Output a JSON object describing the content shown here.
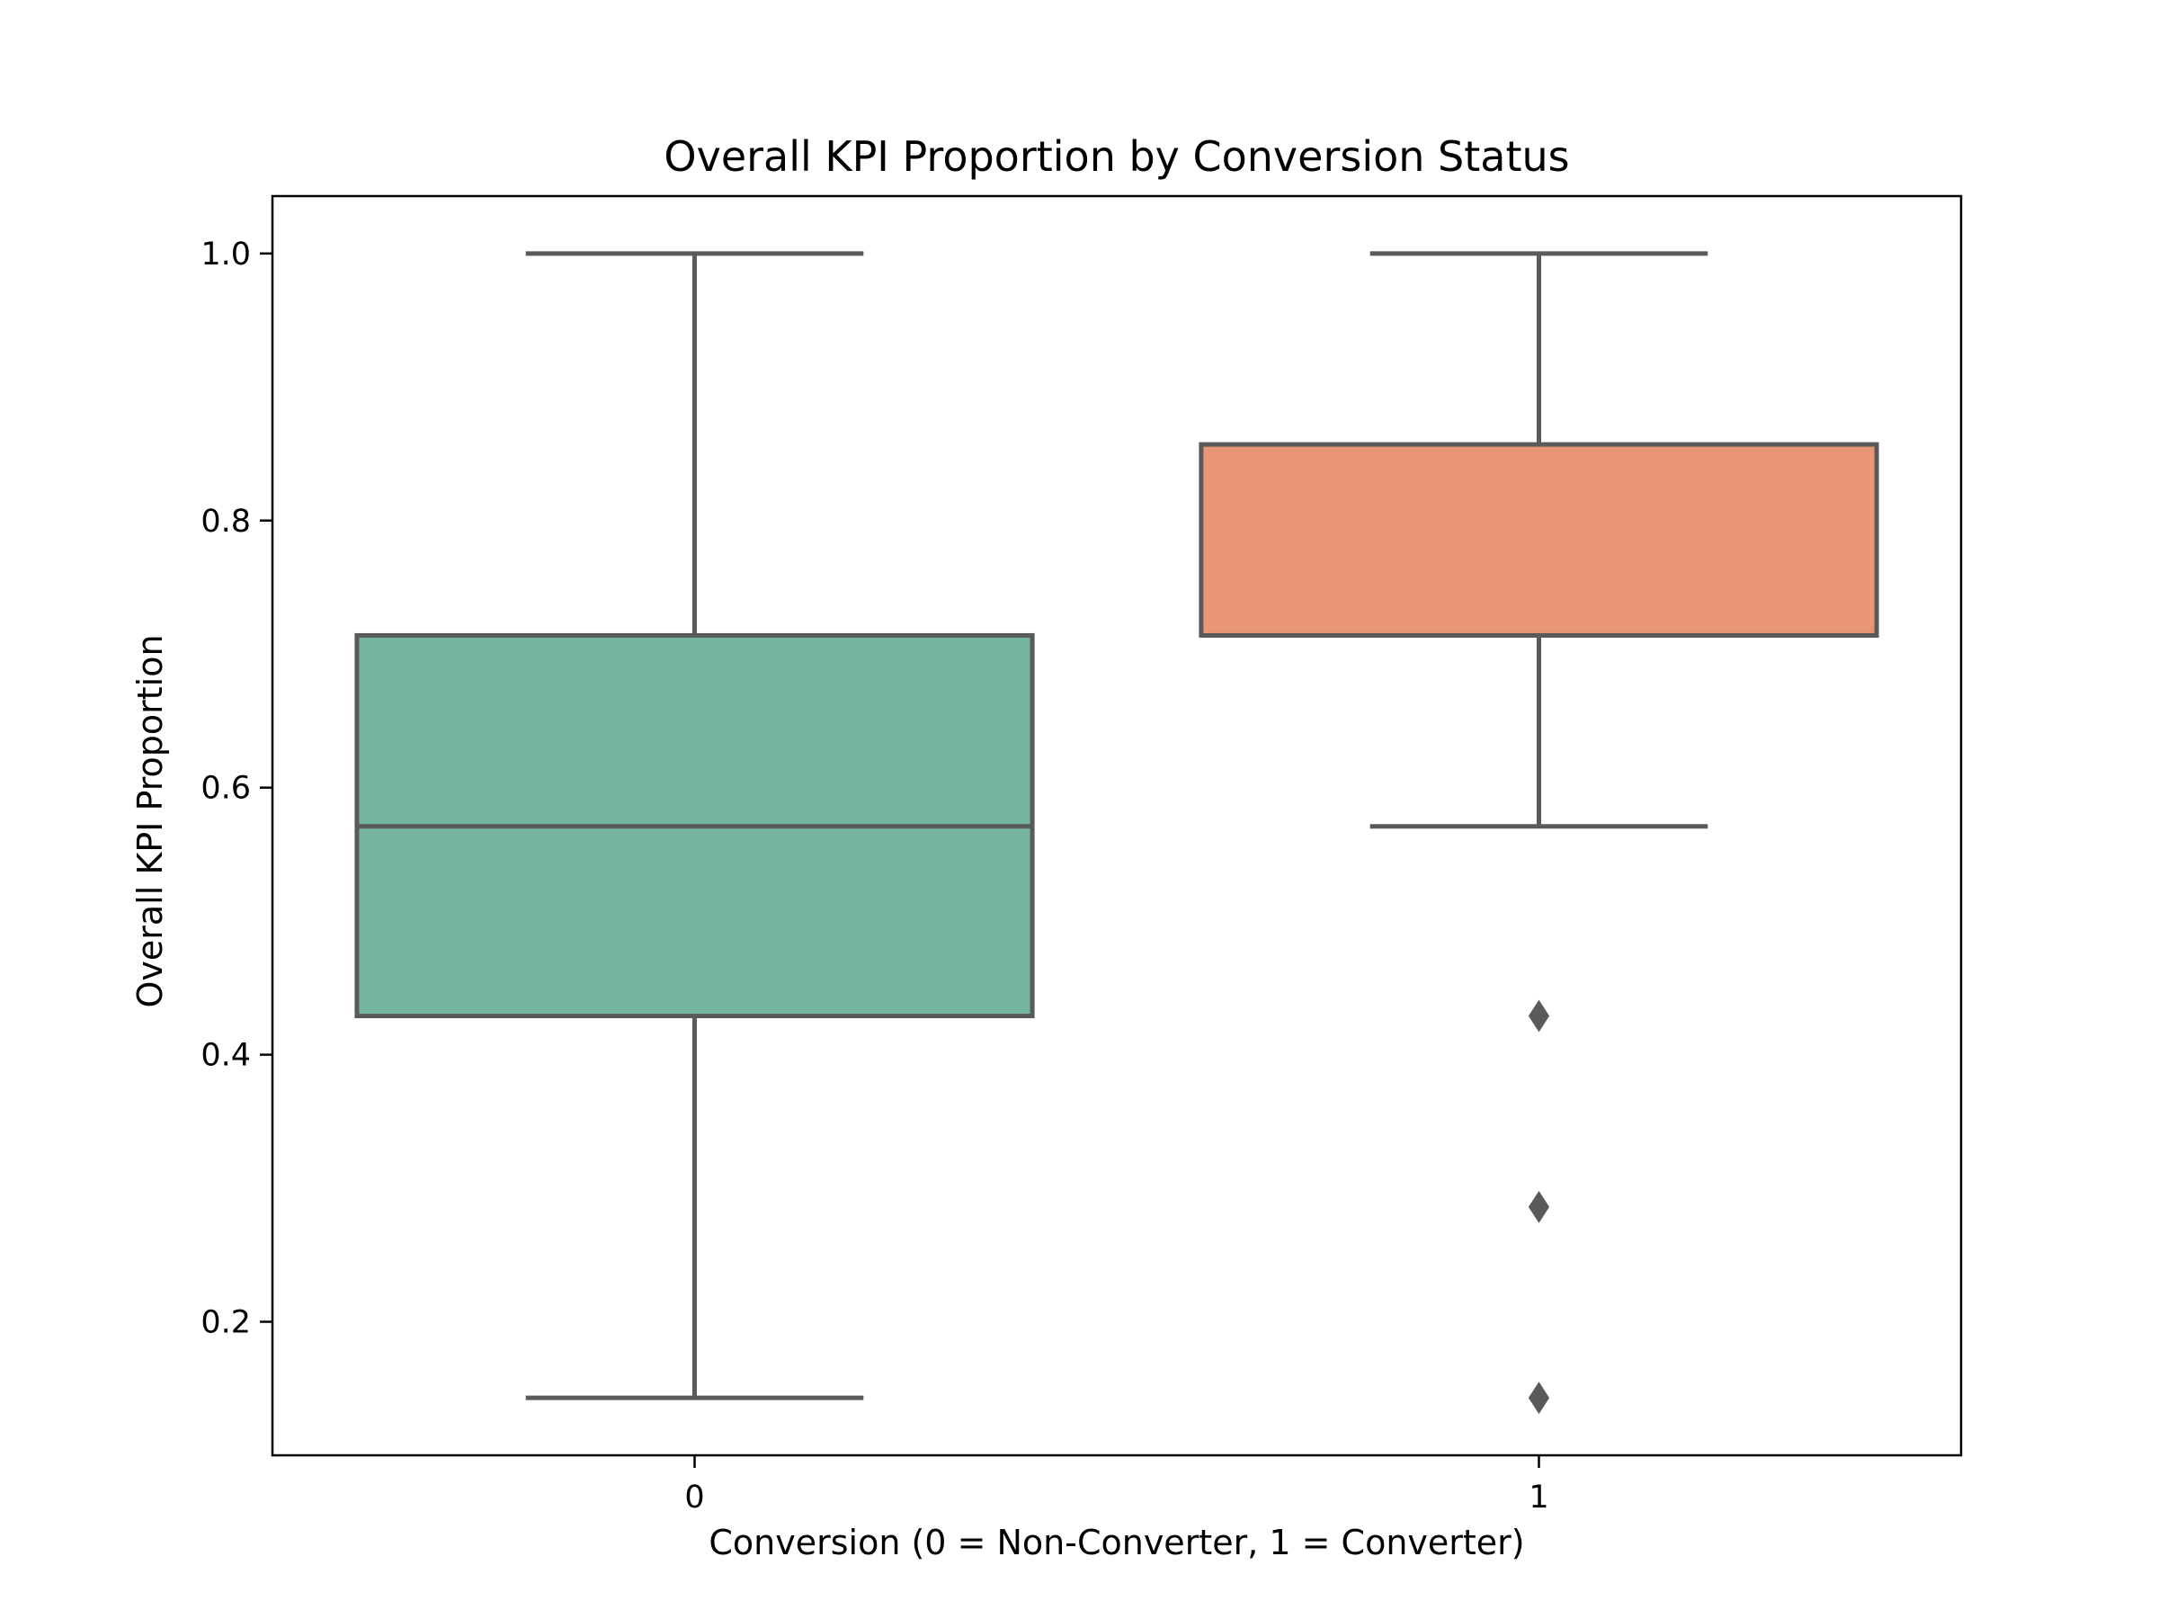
{
  "chart_data": {
    "type": "box",
    "title": "Overall KPI Proportion by Conversion Status",
    "xlabel": "Conversion (0 = Non-Converter, 1 = Converter)",
    "ylabel": "Overall KPI Proportion",
    "categories": [
      "0",
      "1"
    ],
    "ylim": [
      0.1,
      1.043
    ],
    "yticks": [
      0.2,
      0.4,
      0.6,
      0.8,
      1.0
    ],
    "ytick_labels": [
      "0.2",
      "0.4",
      "0.6",
      "0.8",
      "1.0"
    ],
    "grid": false,
    "series": [
      {
        "category": "0",
        "whisker_low": 0.143,
        "q1": 0.429,
        "median": 0.571,
        "q3": 0.714,
        "whisker_high": 1.0,
        "outliers": [],
        "color": "#74b5a0"
      },
      {
        "category": "1",
        "whisker_low": 0.571,
        "q1": 0.714,
        "median": 0.714,
        "q3": 0.857,
        "whisker_high": 1.0,
        "outliers": [
          0.429,
          0.286,
          0.143
        ],
        "color": "#e89674"
      }
    ],
    "line_color": "#5a5a5a"
  }
}
